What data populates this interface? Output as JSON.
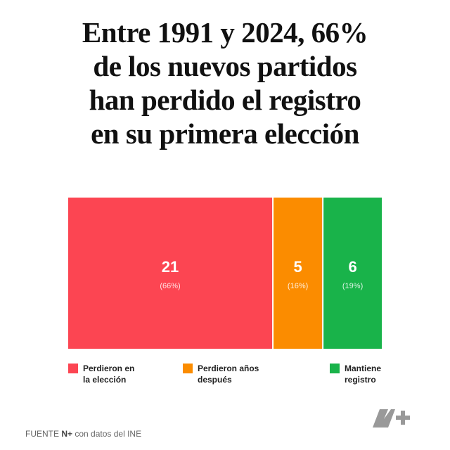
{
  "chart_data": {
    "type": "proportion-bar",
    "title": "Entre 1991 y 2024, 66%\nde los nuevos partidos\nhan perdido el registro\nen su primera elección",
    "categories": [
      "Perdieron en\nla elección",
      "Perdieron años\ndespués",
      "Mantiene\nregistro"
    ],
    "values": [
      21,
      5,
      6
    ],
    "share_labels": [
      "(66%)",
      "(16%)",
      "(19%)"
    ],
    "colors": [
      "#fc4552",
      "#fb8c00",
      "#19b34a"
    ],
    "source": {
      "label": "FUENTE",
      "brand": "N+",
      "text": "con datos del INE"
    }
  }
}
